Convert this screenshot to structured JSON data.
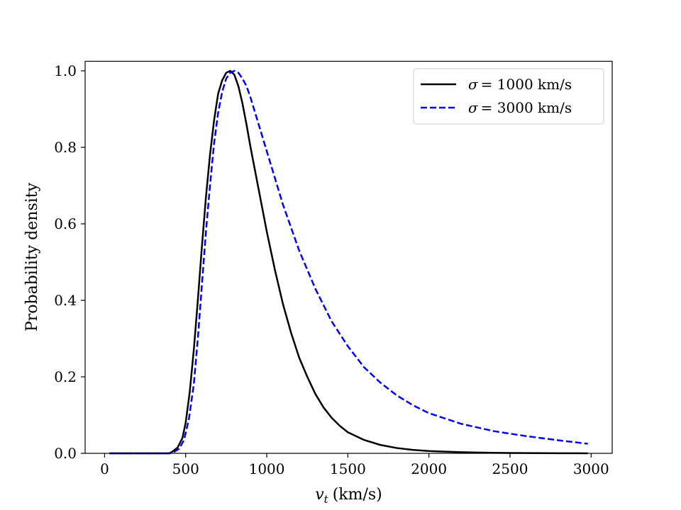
{
  "chart_data": {
    "type": "line",
    "title": "",
    "xlabel": "v_t (km/s)",
    "xlabel_var": "v",
    "xlabel_sub": "t",
    "xlabel_unit": "(km/s)",
    "ylabel": "Probability density",
    "xlim": [
      -120,
      3130
    ],
    "ylim": [
      0,
      1.025
    ],
    "xticks": [
      0,
      500,
      1000,
      1500,
      2000,
      2500,
      3000
    ],
    "yticks": [
      0.0,
      0.2,
      0.4,
      0.6,
      0.8,
      1.0
    ],
    "xtick_labels": [
      "0",
      "500",
      "1000",
      "1500",
      "2000",
      "2500",
      "3000"
    ],
    "ytick_labels": [
      "0.0",
      "0.2",
      "0.4",
      "0.6",
      "0.8",
      "1.0"
    ],
    "grid": false,
    "legend_position": "top-right",
    "series": [
      {
        "name": "σ = 1000 km/s",
        "label_symbol": "σ",
        "label_value": "= 1000 km/s",
        "color": "#000000",
        "style": "solid",
        "x": [
          30,
          200,
          300,
          400,
          420,
          450,
          480,
          500,
          525,
          550,
          575,
          600,
          625,
          650,
          675,
          700,
          725,
          750,
          775,
          800,
          825,
          850,
          875,
          900,
          950,
          1000,
          1050,
          1100,
          1150,
          1200,
          1250,
          1300,
          1350,
          1400,
          1450,
          1500,
          1600,
          1700,
          1800,
          1900,
          2000,
          2100,
          2200,
          2300,
          2400,
          2500,
          2600,
          2700,
          2800,
          2900,
          2980
        ],
        "y": [
          0.0,
          0.0,
          0.0,
          0.0,
          0.005,
          0.015,
          0.04,
          0.08,
          0.16,
          0.27,
          0.4,
          0.54,
          0.67,
          0.78,
          0.87,
          0.94,
          0.975,
          0.995,
          1.0,
          0.99,
          0.96,
          0.915,
          0.86,
          0.8,
          0.69,
          0.58,
          0.48,
          0.39,
          0.315,
          0.25,
          0.2,
          0.155,
          0.12,
          0.093,
          0.072,
          0.055,
          0.035,
          0.022,
          0.014,
          0.009,
          0.006,
          0.0045,
          0.003,
          0.002,
          0.0014,
          0.001,
          0.0007,
          0.0005,
          0.0003,
          0.0002,
          0.0001
        ]
      },
      {
        "name": "σ = 3000 km/s",
        "label_symbol": "σ",
        "label_value": "= 3000 km/s",
        "color": "#0000ff",
        "style": "dashed",
        "x": [
          30,
          200,
          300,
          400,
          430,
          460,
          490,
          520,
          550,
          575,
          600,
          625,
          650,
          675,
          700,
          725,
          750,
          775,
          800,
          825,
          850,
          875,
          900,
          950,
          1000,
          1050,
          1100,
          1200,
          1300,
          1400,
          1500,
          1600,
          1700,
          1800,
          1900,
          2000,
          2200,
          2400,
          2600,
          2800,
          2980
        ],
        "y": [
          0.0,
          0.0,
          0.0,
          0.0,
          0.004,
          0.012,
          0.035,
          0.09,
          0.18,
          0.3,
          0.44,
          0.58,
          0.7,
          0.81,
          0.89,
          0.945,
          0.98,
          0.995,
          1.0,
          0.995,
          0.98,
          0.96,
          0.93,
          0.86,
          0.79,
          0.72,
          0.65,
          0.53,
          0.43,
          0.345,
          0.28,
          0.225,
          0.185,
          0.152,
          0.126,
          0.105,
          0.077,
          0.058,
          0.045,
          0.034,
          0.025
        ]
      }
    ]
  }
}
